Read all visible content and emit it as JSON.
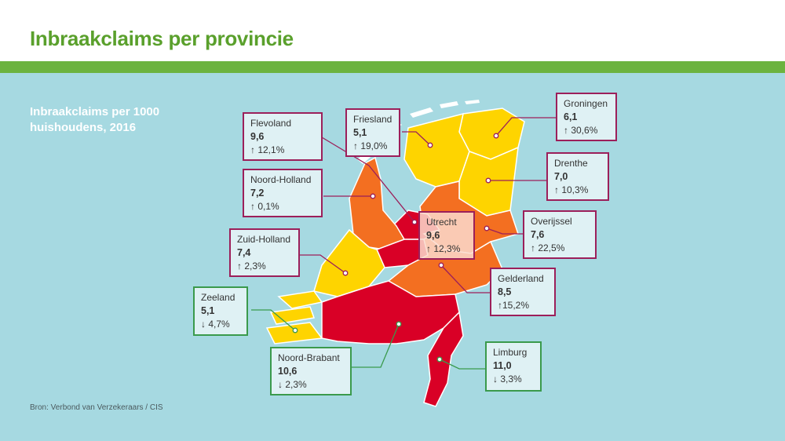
{
  "title": "Inbraakclaims per provincie",
  "subtitle": "Inbraakclaims per 1000 huishoudens, 2016",
  "source": "Bron: Verbond van Verzekeraars / CIS",
  "colors": {
    "title_green": "#5aa02c",
    "bar_green": "#6cb33f",
    "water": "#a6d9e1",
    "level_low": "#fed400",
    "level_mid": "#f36f21",
    "level_high": "#d90026",
    "level_top": "#b8001f",
    "callout_border_increase": "#9c1f5a",
    "callout_border_decrease": "#3a9a4c"
  },
  "provinces": [
    {
      "name": "Groningen",
      "value": "6,1",
      "change": "↑ 30,6%",
      "trend": "up"
    },
    {
      "name": "Friesland",
      "value": "5,1",
      "change": "↑ 19,0%",
      "trend": "up"
    },
    {
      "name": "Drenthe",
      "value": "7,0",
      "change": "↑ 10,3%",
      "trend": "up"
    },
    {
      "name": "Flevoland",
      "value": "9,6",
      "change": "↑ 12,1%",
      "trend": "up"
    },
    {
      "name": "Noord-Holland",
      "value": "7,2",
      "change": "↑ 0,1%",
      "trend": "up"
    },
    {
      "name": "Overijssel",
      "value": "7,6",
      "change": "↑ 22,5%",
      "trend": "up"
    },
    {
      "name": "Utrecht",
      "value": "9,6",
      "change": "↑ 12,3%",
      "trend": "up"
    },
    {
      "name": "Zuid-Holland",
      "value": "7,4",
      "change": "↑ 2,3%",
      "trend": "up"
    },
    {
      "name": "Gelderland",
      "value": "8,5",
      "change": "↑15,2%",
      "trend": "up"
    },
    {
      "name": "Zeeland",
      "value": "5,1",
      "change": "↓ 4,7%",
      "trend": "down"
    },
    {
      "name": "Noord-Brabant",
      "value": "10,6",
      "change": "↓ 2,3%",
      "trend": "down"
    },
    {
      "name": "Limburg",
      "value": "11,0",
      "change": "↓ 3,3%",
      "trend": "down"
    }
  ]
}
